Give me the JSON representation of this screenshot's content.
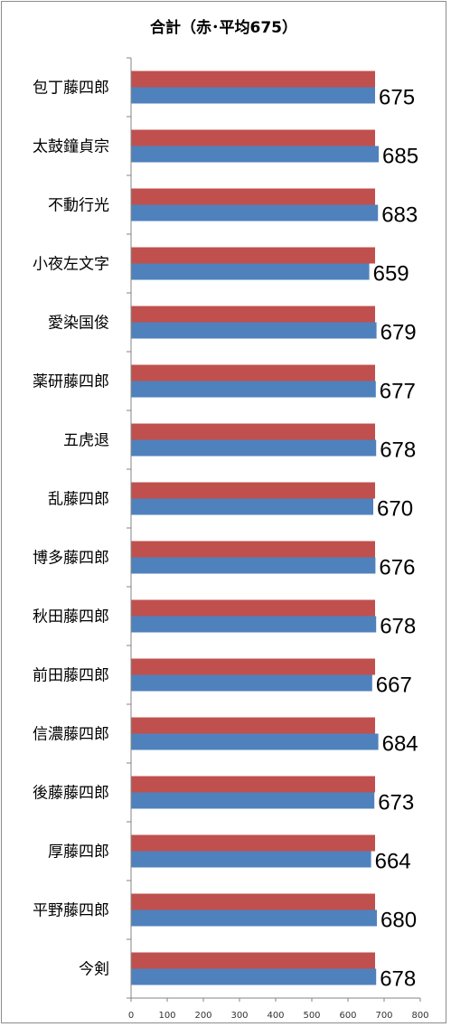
{
  "chart_data": {
    "type": "bar",
    "orientation": "horizontal",
    "title": "合計（赤･平均675）",
    "categories": [
      "包丁藤四郎",
      "太鼓鐘貞宗",
      "不動行光",
      "小夜左文字",
      "愛染国俊",
      "薬研藤四郎",
      "五虎退",
      "乱藤四郎",
      "博多藤四郎",
      "秋田藤四郎",
      "前田藤四郎",
      "信濃藤四郎",
      "後藤藤四郎",
      "厚藤四郎",
      "平野藤四郎",
      "今剣"
    ],
    "series": [
      {
        "color": "#c0504d",
        "values": [
          675,
          675,
          675,
          675,
          675,
          675,
          675,
          675,
          675,
          675,
          675,
          675,
          675,
          675,
          675,
          675
        ]
      },
      {
        "color": "#4f81bd",
        "values": [
          675,
          685,
          683,
          659,
          679,
          677,
          678,
          670,
          676,
          678,
          667,
          684,
          673,
          664,
          680,
          678
        ]
      }
    ],
    "data_labels": [
      "675",
      "685",
      "683",
      "659",
      "679",
      "677",
      "678",
      "670",
      "676",
      "678",
      "667",
      "684",
      "673",
      "664",
      "680",
      "678"
    ],
    "xlim": [
      0,
      800
    ],
    "xticks": [
      "0",
      "100",
      "200",
      "300",
      "400",
      "500",
      "600",
      "700",
      "800"
    ],
    "grid": false,
    "legend": "none"
  }
}
